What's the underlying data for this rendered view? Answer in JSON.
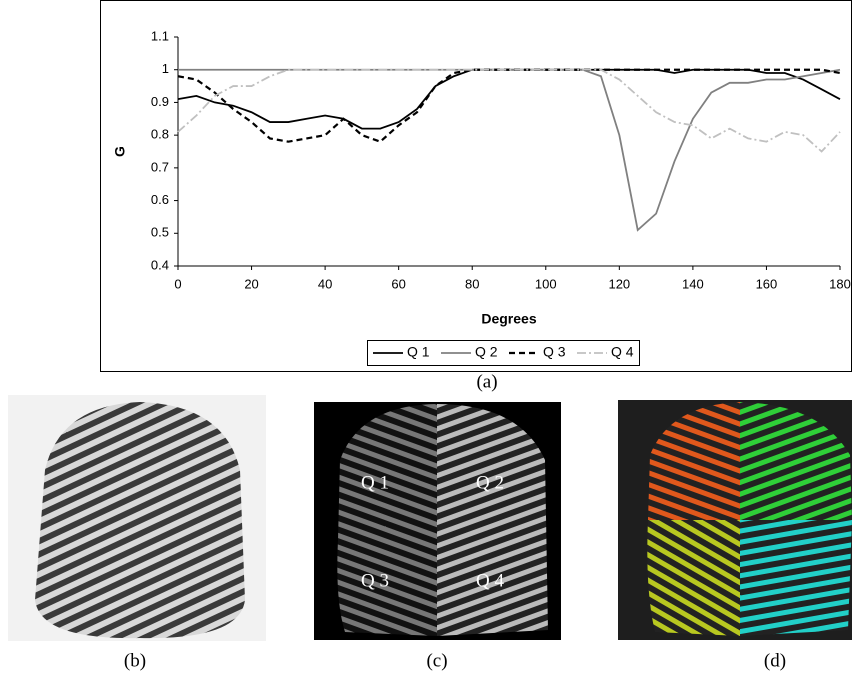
{
  "chart_data": {
    "type": "line",
    "caption": "(a)",
    "x_label": "Degrees",
    "y_label": "G",
    "x": [
      0,
      5,
      10,
      15,
      20,
      25,
      30,
      35,
      40,
      45,
      50,
      55,
      60,
      65,
      70,
      75,
      80,
      85,
      90,
      95,
      100,
      105,
      110,
      115,
      120,
      125,
      130,
      135,
      140,
      145,
      150,
      155,
      160,
      165,
      170,
      175,
      180
    ],
    "xlim": [
      0,
      180
    ],
    "xticks": [
      0,
      20,
      40,
      60,
      80,
      100,
      120,
      140,
      160,
      180
    ],
    "ylim": [
      0.4,
      1.1
    ],
    "yticks": [
      0.4,
      0.5,
      0.6,
      0.7,
      0.8,
      0.9,
      1,
      1.1
    ],
    "legend": "bottom",
    "series": [
      {
        "name": "Q 1",
        "color": "#000000",
        "style": "solid",
        "values": [
          0.91,
          0.92,
          0.9,
          0.89,
          0.87,
          0.84,
          0.84,
          0.85,
          0.86,
          0.85,
          0.82,
          0.82,
          0.84,
          0.88,
          0.95,
          0.98,
          1,
          1,
          1,
          1,
          1,
          1,
          1,
          1,
          1,
          1,
          1,
          0.99,
          1,
          1,
          1,
          1,
          0.99,
          0.99,
          0.97,
          0.94,
          0.91
        ]
      },
      {
        "name": "Q 2",
        "color": "#808080",
        "style": "solid",
        "values": [
          1,
          1,
          1,
          1,
          1,
          1,
          1,
          1,
          1,
          1,
          1,
          1,
          1,
          1,
          1,
          1,
          1,
          1,
          1,
          1,
          1,
          1,
          1,
          0.98,
          0.8,
          0.51,
          0.56,
          0.72,
          0.85,
          0.93,
          0.96,
          0.96,
          0.97,
          0.97,
          0.98,
          0.99,
          1
        ]
      },
      {
        "name": "Q 3",
        "color": "#000000",
        "style": "dashed",
        "values": [
          0.98,
          0.97,
          0.93,
          0.88,
          0.84,
          0.79,
          0.78,
          0.79,
          0.8,
          0.85,
          0.8,
          0.78,
          0.83,
          0.87,
          0.95,
          0.99,
          1,
          1,
          1,
          1,
          1,
          1,
          1,
          1,
          1,
          1,
          1,
          1,
          1,
          1,
          1,
          1,
          1,
          1,
          1,
          1,
          0.99
        ]
      },
      {
        "name": "Q 4",
        "color": "#c0c0c0",
        "style": "dashdot",
        "values": [
          0.81,
          0.86,
          0.92,
          0.95,
          0.95,
          0.98,
          1,
          1,
          1,
          1,
          1,
          1,
          1,
          1,
          1,
          1,
          1,
          1,
          1,
          1,
          1,
          1,
          1,
          1,
          0.97,
          0.92,
          0.87,
          0.84,
          0.83,
          0.79,
          0.82,
          0.79,
          0.78,
          0.81,
          0.8,
          0.75,
          0.81
        ]
      }
    ]
  },
  "panels": [
    {
      "caption": "(b)"
    },
    {
      "caption": "(c)",
      "labels": [
        "Q 1",
        "Q 2",
        "Q 3",
        "Q 4"
      ]
    },
    {
      "caption": "(d)"
    }
  ]
}
